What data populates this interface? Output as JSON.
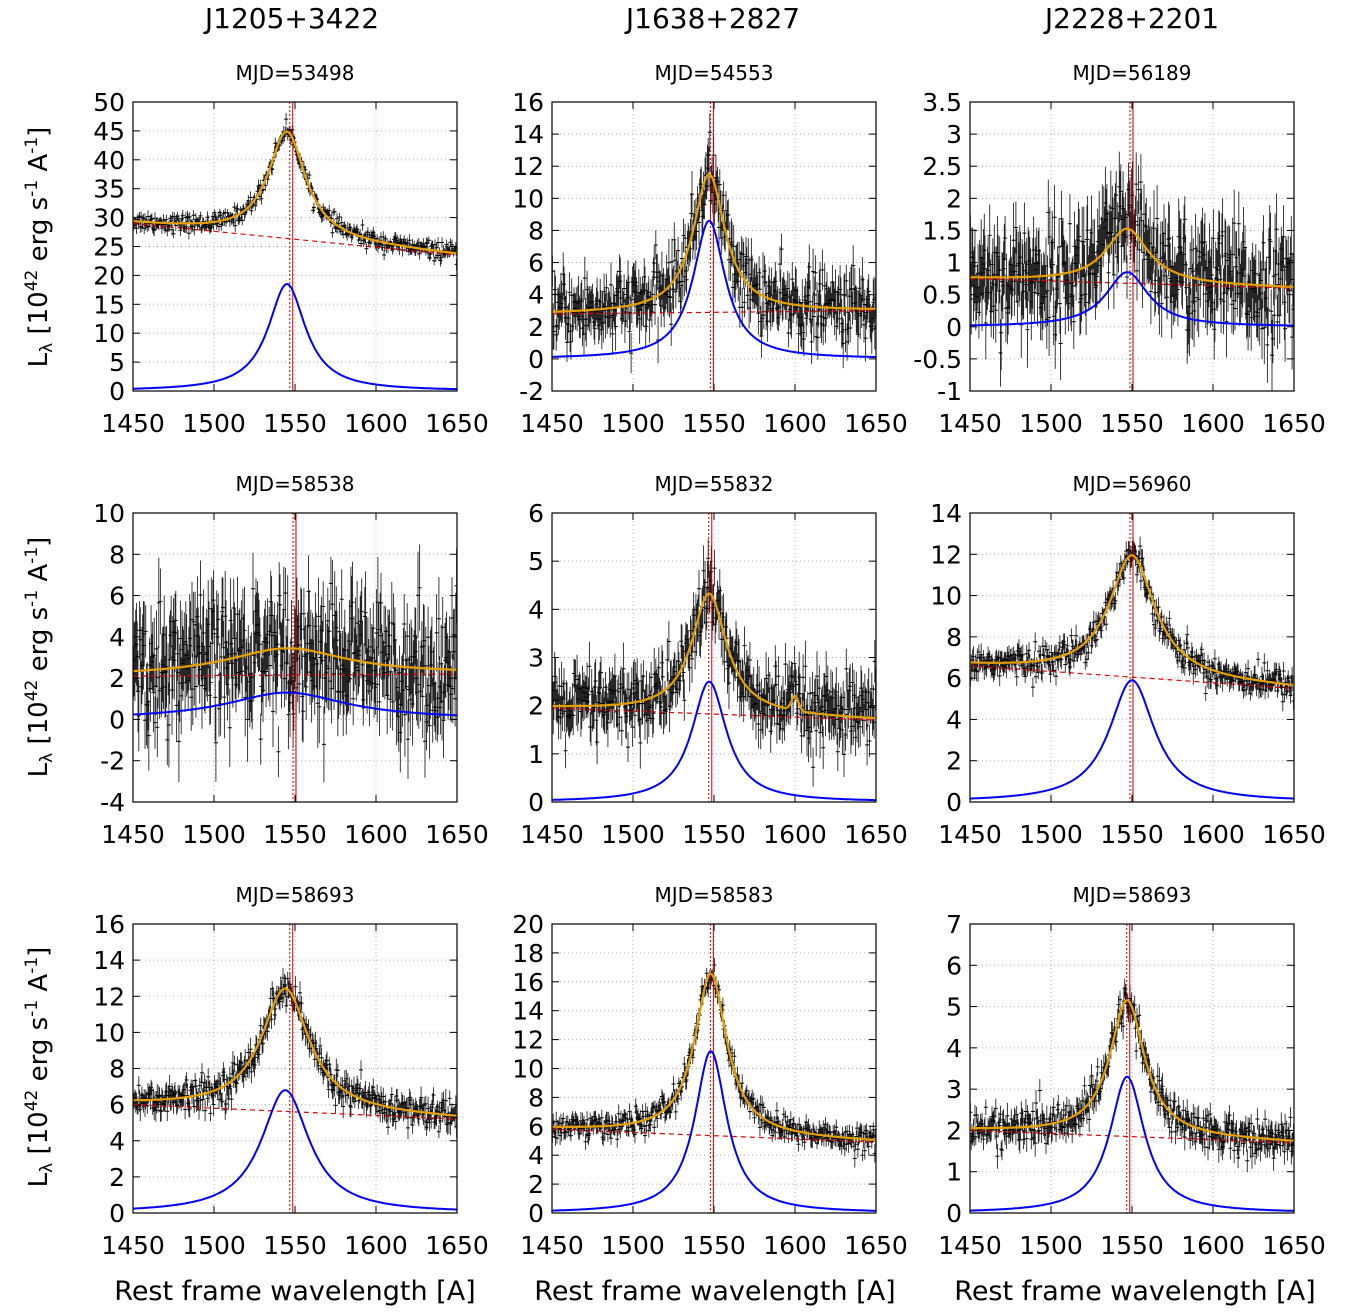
{
  "columns": [
    {
      "title": "J1205+3422"
    },
    {
      "title": "J1638+2827"
    },
    {
      "title": "J2228+2201"
    }
  ],
  "xlabel": "Rest frame wavelength [A]",
  "ylabel": {
    "main": "L",
    "sub": "λ",
    "p1": " [10",
    "sup1": "42",
    "p2": " erg s",
    "sup2": "-1",
    "p3": " A",
    "sup3": "-1",
    "p4": "]"
  },
  "colors": {
    "data": "#000000",
    "fit": "#e69f00",
    "line_component": "#0000ff",
    "continuum": "#e00000",
    "center_line": "#cc0000",
    "grid": "#b0b0b0"
  },
  "chart_data": [
    {
      "type": "line",
      "title": "MJD=53498",
      "xlim": [
        1450,
        1650
      ],
      "ylim": [
        0,
        50
      ],
      "xticks": [
        1450,
        1500,
        1550,
        1600,
        1650
      ],
      "yticks": [
        0,
        5,
        10,
        15,
        20,
        25,
        30,
        35,
        40,
        45,
        50
      ],
      "cont": [
        29,
        23.5
      ],
      "amp": 18.5,
      "center": 1545,
      "width": 14,
      "noise": 1.0,
      "bump": 0,
      "xcenter": 1548,
      "series": [
        {
          "name": "",
          "values": "lorentzian"
        }
      ]
    },
    {
      "type": "line",
      "title": "MJD=54553",
      "xlim": [
        1450,
        1650
      ],
      "ylim": [
        -2,
        16
      ],
      "xticks": [
        1450,
        1500,
        1550,
        1600,
        1650
      ],
      "yticks": [
        -2,
        0,
        2,
        4,
        6,
        8,
        10,
        12,
        14,
        16
      ],
      "cont": [
        2.8,
        3.0
      ],
      "amp": 8.6,
      "center": 1547,
      "width": 12,
      "noise": 1.4,
      "bump": 0,
      "xcenter": 1549
    },
    {
      "type": "line",
      "title": "MJD=56189",
      "xlim": [
        1450,
        1650
      ],
      "ylim": [
        -1,
        3.5
      ],
      "xticks": [
        1450,
        1500,
        1550,
        1600,
        1650
      ],
      "yticks": [
        -1,
        -0.5,
        0,
        0.5,
        1,
        1.5,
        2,
        2.5,
        3,
        3.5
      ],
      "cont": [
        0.75,
        0.6
      ],
      "amp": 0.85,
      "center": 1547,
      "width": 16,
      "noise": 0.55,
      "bump": 0,
      "xcenter": 1550
    },
    {
      "type": "line",
      "title": "MJD=58538",
      "xlim": [
        1450,
        1650
      ],
      "ylim": [
        -4,
        10
      ],
      "xticks": [
        1450,
        1500,
        1550,
        1600,
        1650
      ],
      "yticks": [
        -4,
        -2,
        0,
        2,
        4,
        6,
        8,
        10
      ],
      "cont": [
        2.1,
        2.2
      ],
      "amp": 1.3,
      "center": 1545,
      "width": 45,
      "noise": 2.0,
      "bump": 0,
      "xcenter": 1550
    },
    {
      "type": "line",
      "title": "MJD=55832",
      "xlim": [
        1450,
        1650
      ],
      "ylim": [
        0,
        6
      ],
      "xticks": [
        1450,
        1500,
        1550,
        1600,
        1650
      ],
      "yticks": [
        0,
        1,
        2,
        3,
        4,
        5,
        6
      ],
      "cont": [
        1.95,
        1.7
      ],
      "amp": 2.5,
      "center": 1547,
      "width": 13,
      "noise": 0.5,
      "bump": 0.3,
      "xcenter": 1548
    },
    {
      "type": "line",
      "title": "MJD=56960",
      "xlim": [
        1450,
        1650
      ],
      "ylim": [
        0,
        14
      ],
      "xticks": [
        1450,
        1500,
        1550,
        1600,
        1650
      ],
      "yticks": [
        0,
        2,
        4,
        6,
        8,
        10,
        12,
        14
      ],
      "cont": [
        6.6,
        5.5
      ],
      "amp": 5.9,
      "center": 1550,
      "width": 17,
      "noise": 0.5,
      "bump": 0,
      "xcenter": 1550
    },
    {
      "type": "line",
      "title": "MJD=58693",
      "xlim": [
        1450,
        1650
      ],
      "ylim": [
        0,
        16
      ],
      "xticks": [
        1450,
        1500,
        1550,
        1600,
        1650
      ],
      "yticks": [
        0,
        2,
        4,
        6,
        8,
        10,
        12,
        14,
        16
      ],
      "cont": [
        6.0,
        5.2
      ],
      "amp": 6.8,
      "center": 1544,
      "width": 18,
      "noise": 0.6,
      "bump": 0,
      "xcenter": 1548
    },
    {
      "type": "line",
      "title": "MJD=58583",
      "xlim": [
        1450,
        1650
      ],
      "ylim": [
        0,
        20
      ],
      "xticks": [
        1450,
        1500,
        1550,
        1600,
        1650
      ],
      "yticks": [
        0,
        2,
        4,
        6,
        8,
        10,
        12,
        14,
        16,
        18,
        20
      ],
      "cont": [
        5.8,
        4.9
      ],
      "amp": 11.2,
      "center": 1548,
      "width": 12,
      "noise": 0.6,
      "bump": 0,
      "xcenter": 1549
    },
    {
      "type": "line",
      "title": "MJD=58693",
      "xlim": [
        1450,
        1650
      ],
      "ylim": [
        0,
        7
      ],
      "xticks": [
        1450,
        1500,
        1550,
        1600,
        1650
      ],
      "yticks": [
        0,
        1,
        2,
        3,
        4,
        5,
        6,
        7
      ],
      "cont": [
        2.0,
        1.7
      ],
      "amp": 3.3,
      "center": 1547,
      "width": 13,
      "noise": 0.3,
      "bump": 0,
      "xcenter": 1548
    }
  ]
}
